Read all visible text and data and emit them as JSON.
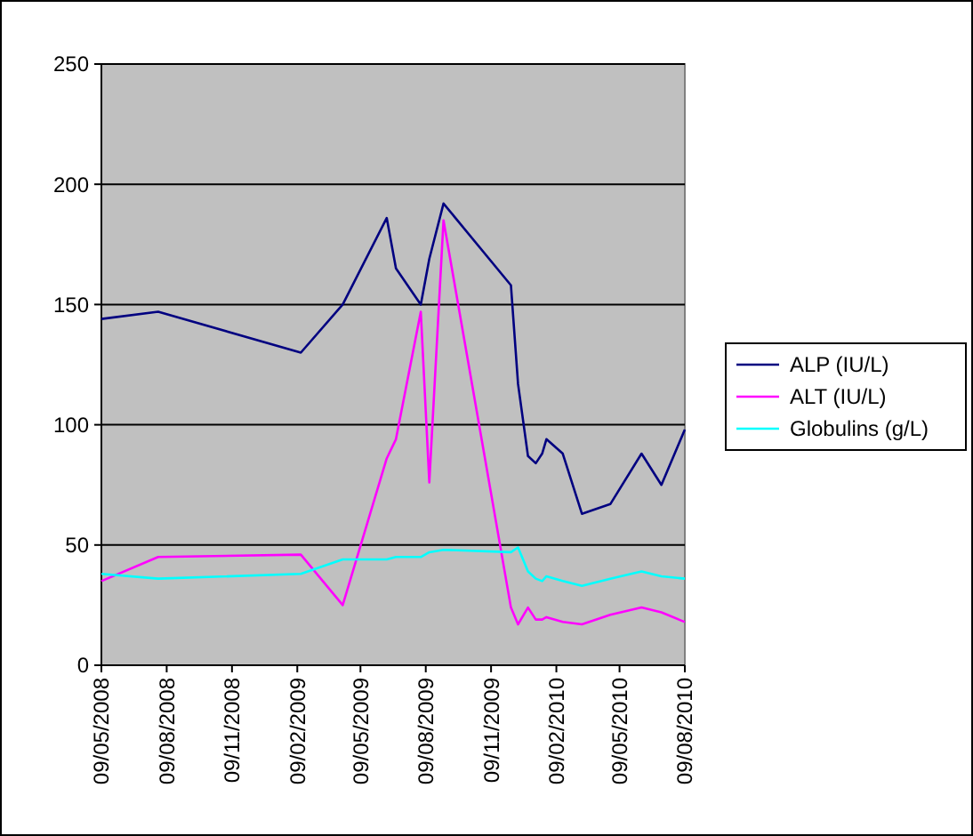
{
  "chart_data": {
    "type": "line",
    "x": [
      "2008-05-09",
      "2008-07-28",
      "2009-02-14",
      "2009-04-14",
      "2009-06-15",
      "2009-06-28",
      "2009-08-02",
      "2009-08-14",
      "2009-09-03",
      "2009-12-07",
      "2009-12-17",
      "2009-12-31",
      "2010-01-11",
      "2010-01-20",
      "2010-01-26",
      "2010-02-18",
      "2010-03-17",
      "2010-04-26",
      "2010-06-09",
      "2010-07-07",
      "2010-08-09"
    ],
    "series": [
      {
        "name": "ALP (IU/L)",
        "color": "#000080",
        "values": [
          144,
          147,
          130,
          150,
          186,
          165,
          150,
          169,
          192,
          158,
          117,
          87,
          84,
          88,
          94,
          88,
          63,
          67,
          88,
          75,
          98
        ]
      },
      {
        "name": "ALT (IU/L)",
        "color": "#ff00ff",
        "values": [
          35,
          45,
          46,
          25,
          86,
          94,
          147,
          76,
          185,
          24,
          17,
          24,
          19,
          19,
          20,
          18,
          17,
          21,
          24,
          22,
          18
        ]
      },
      {
        "name": "Globulins (g/L)",
        "color": "#00ffff",
        "values": [
          38,
          36,
          38,
          44,
          44,
          45,
          45,
          47,
          48,
          47,
          49,
          39,
          36,
          35,
          37,
          35,
          33,
          36,
          39,
          37,
          36
        ]
      }
    ],
    "xlim": [
      "2008-05-09",
      "2010-08-09"
    ],
    "xticks": [
      {
        "value": "2008-05-09",
        "label": "09/05/2008"
      },
      {
        "value": "2008-08-09",
        "label": "09/08/2008"
      },
      {
        "value": "2008-11-09",
        "label": "09/11/2008"
      },
      {
        "value": "2009-02-09",
        "label": "09/02/2009"
      },
      {
        "value": "2009-05-09",
        "label": "09/05/2009"
      },
      {
        "value": "2009-08-09",
        "label": "09/08/2009"
      },
      {
        "value": "2009-11-09",
        "label": "09/11/2009"
      },
      {
        "value": "2010-02-09",
        "label": "09/02/2010"
      },
      {
        "value": "2010-05-09",
        "label": "09/05/2010"
      },
      {
        "value": "2010-08-09",
        "label": "09/08/2010"
      }
    ],
    "ylim": [
      0,
      250
    ],
    "yticks": [
      0,
      50,
      100,
      150,
      200,
      250
    ],
    "grid": "y",
    "legend": "right",
    "marker": "none",
    "line_style": "solid"
  }
}
